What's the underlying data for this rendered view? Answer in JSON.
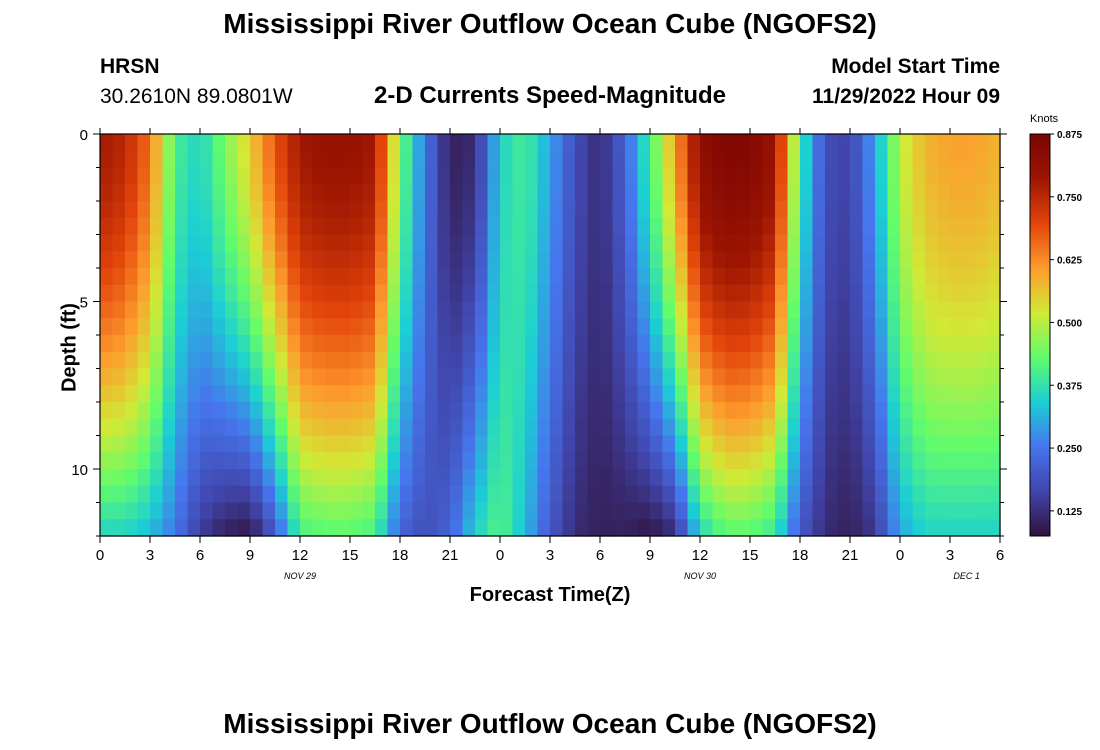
{
  "page": {
    "title": "Mississippi River Outflow Ocean Cube (NGOFS2)",
    "station_code": "HRSN",
    "station_coords": "30.2610N  89.0801W",
    "subtitle": "2-D Currents Speed-Magnitude",
    "model_start_label": "Model Start Time",
    "model_start_value": "11/29/2022 Hour 09"
  },
  "chart_data": {
    "type": "heatmap",
    "title": "2-D Currents Speed-Magnitude",
    "xlabel": "Forecast Time(Z)",
    "ylabel": "Depth (ft)",
    "x_range_hours": [
      0,
      54
    ],
    "y_range_ft": [
      0,
      12
    ],
    "y_inverted": true,
    "x_ticks": [
      {
        "hour": 0,
        "label": "0"
      },
      {
        "hour": 3,
        "label": "3"
      },
      {
        "hour": 6,
        "label": "6"
      },
      {
        "hour": 9,
        "label": "9"
      },
      {
        "hour": 12,
        "label": "12"
      },
      {
        "hour": 15,
        "label": "15"
      },
      {
        "hour": 18,
        "label": "18"
      },
      {
        "hour": 21,
        "label": "21"
      },
      {
        "hour": 24,
        "label": "0"
      },
      {
        "hour": 27,
        "label": "3"
      },
      {
        "hour": 30,
        "label": "6"
      },
      {
        "hour": 33,
        "label": "9"
      },
      {
        "hour": 36,
        "label": "12"
      },
      {
        "hour": 39,
        "label": "15"
      },
      {
        "hour": 42,
        "label": "18"
      },
      {
        "hour": 45,
        "label": "21"
      },
      {
        "hour": 48,
        "label": "0"
      },
      {
        "hour": 51,
        "label": "3"
      },
      {
        "hour": 54,
        "label": "6"
      }
    ],
    "date_labels": [
      {
        "hour": 12,
        "label": "NOV 29"
      },
      {
        "hour": 36,
        "label": "NOV 30"
      },
      {
        "hour": 52,
        "label": "DEC 1"
      }
    ],
    "y_ticks": [
      {
        "depth": 0,
        "label": "0"
      },
      {
        "depth": 5,
        "label": "5"
      },
      {
        "depth": 10,
        "label": "10"
      }
    ],
    "depth_levels": [
      0.25,
      0.75,
      1.25,
      1.75,
      2.25,
      2.75,
      3.25,
      3.75,
      4.25,
      4.75,
      5.25,
      5.75,
      6.25,
      6.75,
      7.25,
      7.75,
      8.25,
      8.75,
      9.25,
      9.75,
      10.25,
      10.75,
      11.25,
      11.75
    ],
    "speed_profile": {
      "description": "Surface speed (knots) by forecast hour; sampled every 1.5 h from hour 0 to 54",
      "hours": [
        0,
        1.5,
        3,
        4.5,
        6,
        7.5,
        9,
        10.5,
        12,
        13.5,
        15,
        16.5,
        18,
        19.5,
        21,
        22.5,
        24,
        25.5,
        27,
        28.5,
        30,
        31.5,
        33,
        34.5,
        36,
        37.5,
        39,
        40.5,
        42,
        43.5,
        45,
        46.5,
        48,
        49.5,
        51,
        52.5,
        54
      ],
      "surface_knots": [
        0.78,
        0.75,
        0.65,
        0.4,
        0.35,
        0.45,
        0.55,
        0.68,
        0.78,
        0.8,
        0.8,
        0.78,
        0.45,
        0.25,
        0.1,
        0.12,
        0.35,
        0.4,
        0.3,
        0.18,
        0.12,
        0.22,
        0.4,
        0.6,
        0.82,
        0.86,
        0.85,
        0.8,
        0.4,
        0.18,
        0.16,
        0.3,
        0.5,
        0.58,
        0.6,
        0.6,
        0.58
      ],
      "bottom_knots": [
        0.35,
        0.35,
        0.32,
        0.25,
        0.15,
        0.1,
        0.08,
        0.2,
        0.4,
        0.42,
        0.42,
        0.4,
        0.22,
        0.18,
        0.22,
        0.35,
        0.42,
        0.32,
        0.2,
        0.12,
        0.1,
        0.1,
        0.08,
        0.12,
        0.35,
        0.42,
        0.42,
        0.38,
        0.2,
        0.12,
        0.1,
        0.14,
        0.3,
        0.35,
        0.35,
        0.35,
        0.35
      ]
    },
    "colorbar": {
      "title": "Knots",
      "min": 0.075,
      "max": 0.875,
      "ticks": [
        {
          "value": 0.875,
          "label": "0.875"
        },
        {
          "value": 0.75,
          "label": "0.750"
        },
        {
          "value": 0.625,
          "label": "0.625"
        },
        {
          "value": 0.5,
          "label": "0.500"
        },
        {
          "value": 0.375,
          "label": "0.375"
        },
        {
          "value": 0.25,
          "label": "0.250"
        },
        {
          "value": 0.125,
          "label": "0.125"
        }
      ],
      "stops": [
        "#30123b",
        "#4145ab",
        "#4675ed",
        "#1bcfd4",
        "#61fc6c",
        "#d2e935",
        "#fe9b2d",
        "#e2440a",
        "#9d1502",
        "#7a0403"
      ]
    }
  }
}
